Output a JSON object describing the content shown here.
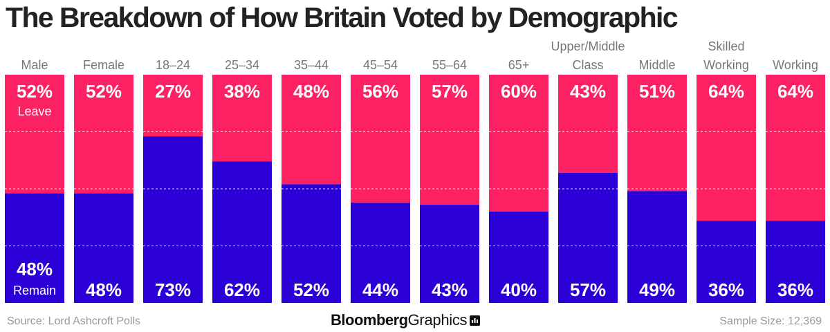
{
  "title": "The Breakdown of How Britain Voted by Demographic",
  "footer": {
    "source": "Source: Lord Ashcroft Polls",
    "brand_bold": "Bloomberg",
    "brand_light": "Graphics",
    "brand_icon": "bar-chart-speech-icon",
    "sample_size": "Sample Size: 12,369"
  },
  "colors": {
    "leave": "#fb2163",
    "remain": "#2b00d6"
  },
  "chart_data": {
    "type": "bar",
    "stacked": true,
    "normalized": true,
    "title": "The Breakdown of How Britain Voted by Demographic",
    "categories": [
      [
        "Male"
      ],
      [
        "Female"
      ],
      [
        "18–24"
      ],
      [
        "25–34"
      ],
      [
        "35–44"
      ],
      [
        "45–54"
      ],
      [
        "55–64"
      ],
      [
        "65+"
      ],
      [
        "Upper/Middle",
        "Class"
      ],
      [
        "Middle"
      ],
      [
        "Skilled",
        "Working"
      ],
      [
        "Working"
      ]
    ],
    "series": [
      {
        "name": "Leave",
        "color": "#fb2163",
        "values": [
          52,
          52,
          27,
          38,
          48,
          56,
          57,
          60,
          43,
          51,
          64,
          64
        ]
      },
      {
        "name": "Remain",
        "color": "#2b00d6",
        "values": [
          48,
          48,
          73,
          62,
          52,
          44,
          43,
          40,
          57,
          49,
          36,
          36
        ]
      }
    ],
    "series_labels_on_first_bar": {
      "leave": "Leave",
      "remain": "Remain"
    },
    "value_suffix": "%",
    "gridlines": [
      25,
      50,
      75
    ],
    "ylim": [
      0,
      100
    ],
    "grid": true,
    "legend": "inline-first-bar",
    "xlabel": "",
    "ylabel": ""
  }
}
